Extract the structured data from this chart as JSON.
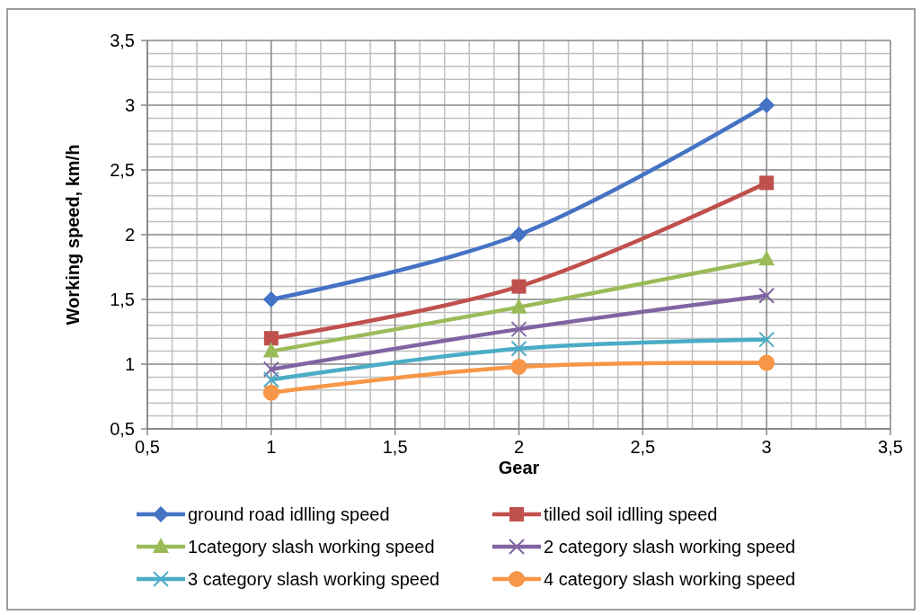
{
  "chart_data": {
    "type": "line",
    "xlabel": "Gear",
    "ylabel": "Working speed, km/h",
    "x": [
      1,
      2,
      3
    ],
    "series": [
      {
        "name": "ground road idlling speed",
        "color": "#4472c4",
        "marker": "diamond",
        "values": [
          1.5,
          2,
          3
        ]
      },
      {
        "name": "tilled soil idlling speed",
        "color": "#c0504d",
        "marker": "square",
        "values": [
          1.2,
          1.6,
          2.4
        ]
      },
      {
        "name": "1category slash working speed",
        "color": "#9bbb59",
        "marker": "triangle",
        "values": [
          1.1,
          1.44,
          1.81
        ]
      },
      {
        "name": "2 category slash working speed",
        "color": "#8064a2",
        "marker": "cross",
        "values": [
          0.96,
          1.27,
          1.53
        ]
      },
      {
        "name": "3 category slash working speed",
        "color": "#4bacc6",
        "marker": "cross",
        "values": [
          0.88,
          1.12,
          1.19
        ]
      },
      {
        "name": "4 category slash working speed",
        "color": "#f79646",
        "marker": "circle",
        "values": [
          0.78,
          0.98,
          1.01
        ]
      }
    ],
    "xlim": [
      0.5,
      3.5
    ],
    "xticks": [
      {
        "value": 0.5,
        "label": "0,5"
      },
      1,
      {
        "value": 1.5,
        "label": "1,5"
      },
      2,
      {
        "value": 2.5,
        "label": "2,5"
      },
      3,
      {
        "value": 3.5,
        "label": "3,5"
      }
    ],
    "ylim": [
      0.5,
      3.5
    ],
    "yticks": [
      {
        "value": 0.5,
        "label": "0,5"
      },
      1,
      {
        "value": 1.5,
        "label": "1,5"
      },
      2,
      {
        "value": 2.5,
        "label": "2,5"
      },
      3,
      {
        "value": 3.5,
        "label": "3,5"
      }
    ],
    "grid": true,
    "legend": "bottom",
    "line_style": "solid"
  }
}
